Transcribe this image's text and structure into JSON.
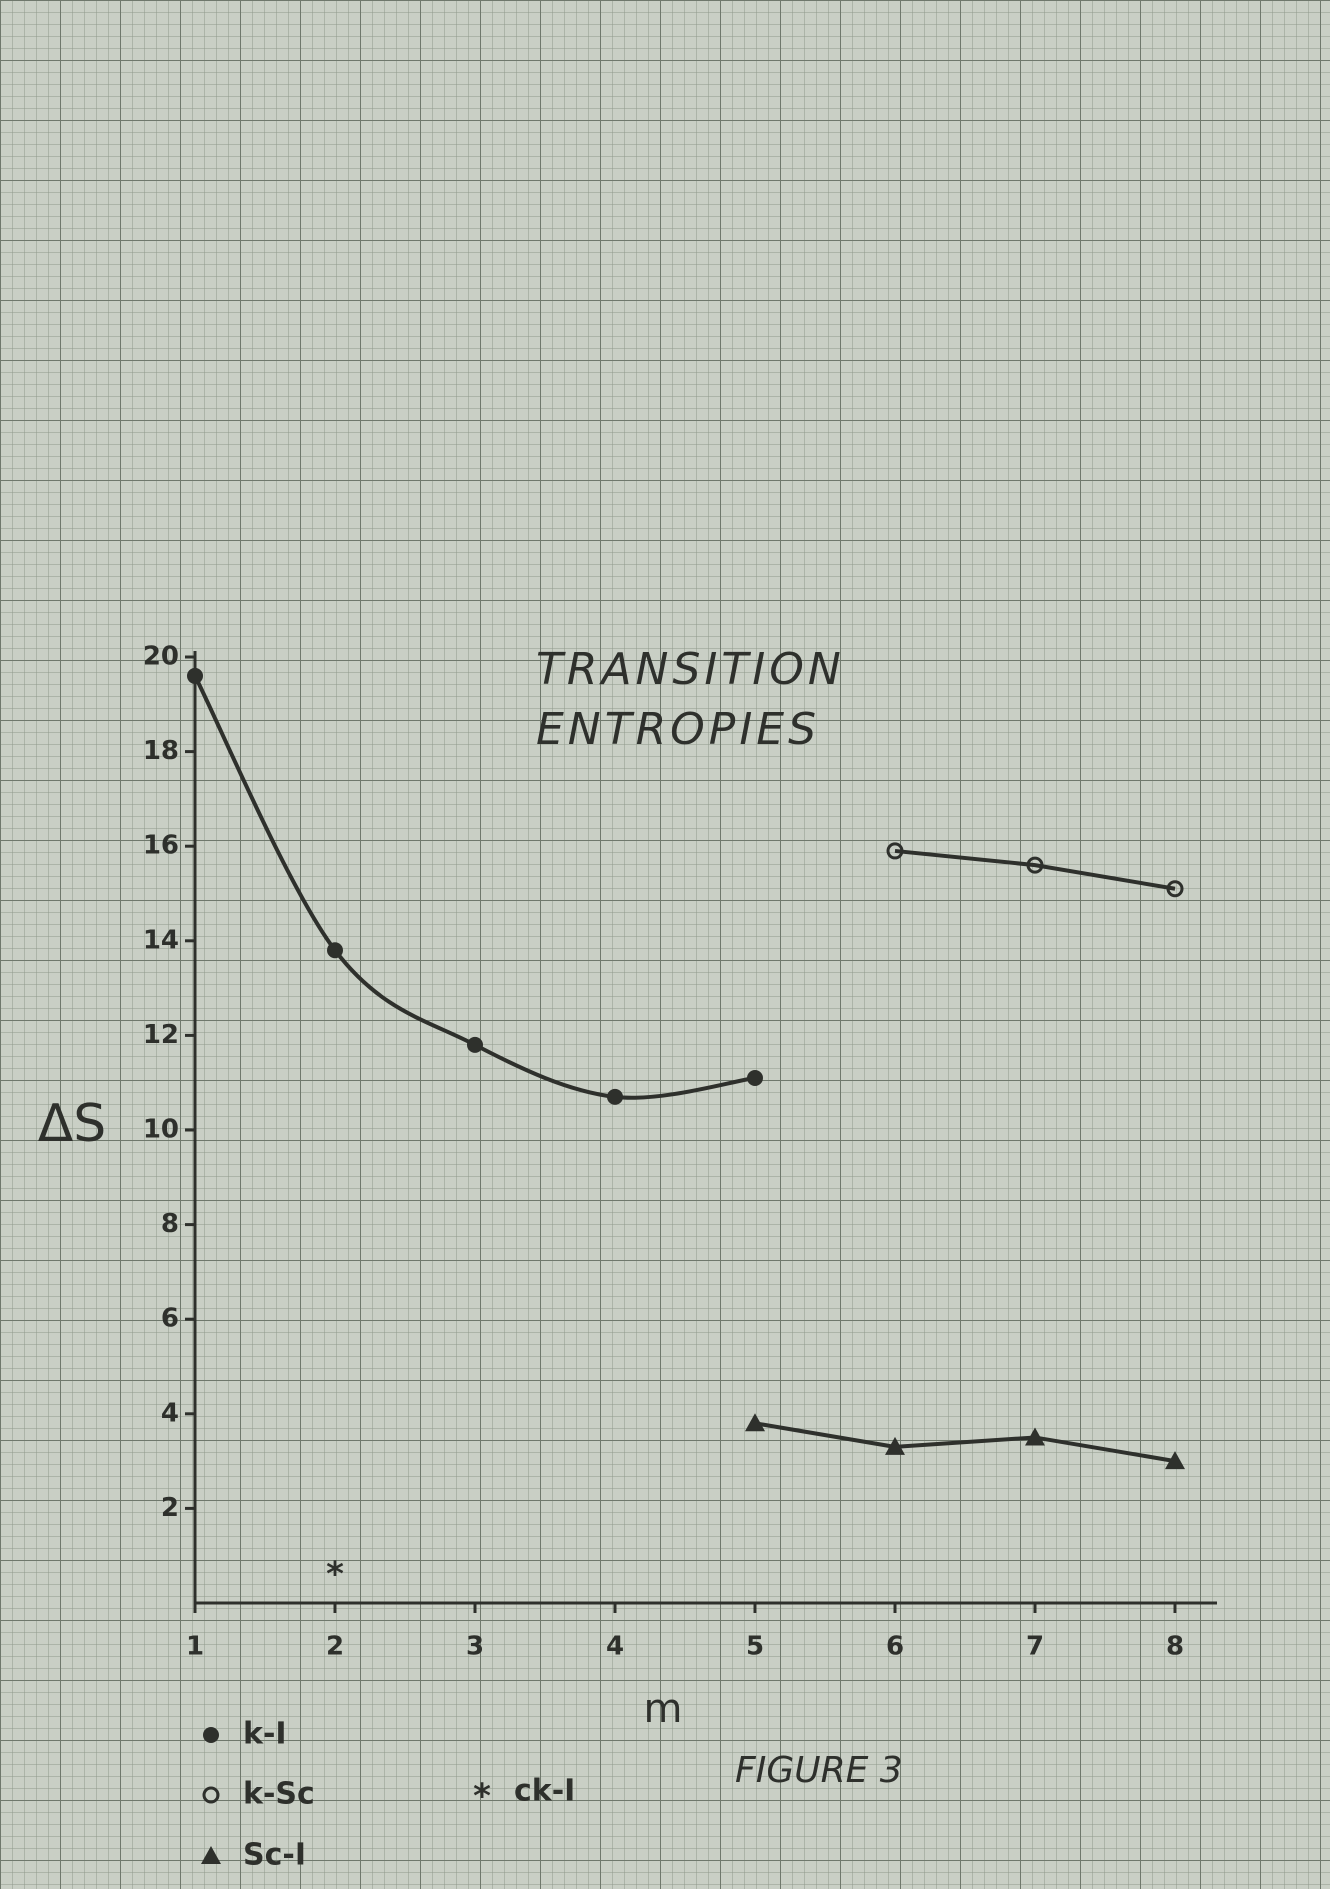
{
  "chart_data": {
    "type": "line",
    "title": "TRANSITION ENTROPIES",
    "subtitle": "FIGURE 3",
    "x_label": "m",
    "y_label": "ΔS",
    "x": [
      1,
      2,
      3,
      4,
      5,
      6,
      7,
      8
    ],
    "series": [
      {
        "name": "k-I",
        "marker": "dot",
        "smooth": true,
        "color": "#2e302c",
        "values": [
          19.6,
          13.8,
          11.8,
          10.7,
          11.1,
          null,
          null,
          null
        ]
      },
      {
        "name": "k-Sc",
        "marker": "circle",
        "smooth": false,
        "color": "#2e302c",
        "values": [
          null,
          null,
          null,
          null,
          null,
          15.9,
          15.6,
          15.1
        ]
      },
      {
        "name": "ck-I",
        "marker": "star",
        "smooth": false,
        "color": "#2e302c",
        "values": [
          null,
          0.7,
          null,
          null,
          null,
          null,
          null,
          null
        ]
      },
      {
        "name": "Sc-I",
        "marker": "triangle",
        "smooth": false,
        "color": "#2e302c",
        "values": [
          null,
          null,
          null,
          null,
          3.8,
          3.3,
          3.5,
          3.0
        ]
      }
    ],
    "xlim": [
      1,
      8.3
    ],
    "ylim": [
      0,
      20
    ],
    "xticks": [
      1,
      2,
      3,
      4,
      5,
      6,
      7,
      8
    ],
    "yticks": [
      2,
      4,
      6,
      8,
      10,
      12,
      14,
      16,
      18,
      20
    ],
    "grid": true
  }
}
